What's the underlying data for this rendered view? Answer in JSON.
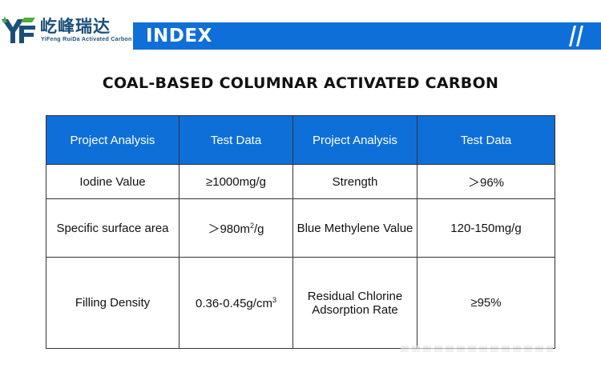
{
  "brand": {
    "name_cn": "屹峰瑞达",
    "name_en": "YiFeng RuiDa Activated Carbon"
  },
  "header": {
    "index_label": "INDEX"
  },
  "title": "COAL-BASED COLUMNAR ACTIVATED CARBON",
  "table": {
    "headers": [
      "Project Analysis",
      "Test Data",
      "Project Analysis",
      "Test Data"
    ],
    "rows": [
      {
        "a": "Iodine Value",
        "b": "≥1000mg/g",
        "c": "Strength",
        "d": "＞96%"
      },
      {
        "a": "Specific surface area",
        "b_main": "＞980m",
        "b_sup": "2",
        "b_tail": "/g",
        "c": "Blue Methylene Value",
        "d": "120-150mg/g"
      },
      {
        "a": "Filling Density",
        "b_main": "0.36-0.45g/cm",
        "b_sup": "3",
        "c_line1": "Residual Chlorine",
        "c_line2": "Adsorption Rate",
        "d": "≥95%"
      }
    ]
  },
  "colors": {
    "accent": "#0e6fd8",
    "logo_blue": "#1a4f7a",
    "logo_green": "#4caf3c"
  },
  "icons": [
    "yf-logo-icon",
    "double-slash-icon"
  ]
}
